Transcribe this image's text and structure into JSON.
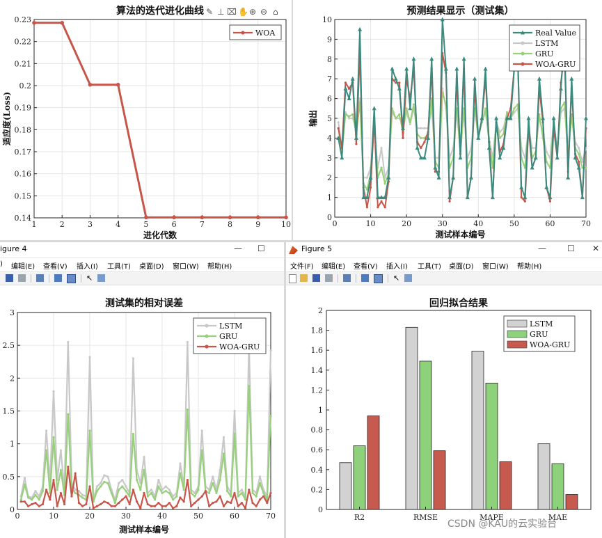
{
  "colors": {
    "woa_gru": "#C8554A",
    "lstm": "#C8C8C8",
    "gru": "#97D07A",
    "real": "#3A8A7F",
    "bar_lstm": "#D2D2D2",
    "bar_gru": "#8DD17A",
    "bar_woa": "#C65A4E"
  },
  "iter": {
    "title": "算法的迭代进化曲线",
    "xlabel": "进化代数",
    "ylabel": "适应度(Loss)",
    "legend": [
      "WOA"
    ],
    "yticks": [
      "0.14",
      "0.15",
      "0.16",
      "0.17",
      "0.18",
      "0.19",
      "0.2",
      "0.21",
      "0.22",
      "0.23"
    ],
    "xticks": [
      "1",
      "2",
      "3",
      "4",
      "5",
      "6",
      "7",
      "8",
      "9",
      "10"
    ]
  },
  "pred": {
    "title": "预测结果显示（测试集）",
    "xlabel": "测试样本编号",
    "ylabel": "输出",
    "legend": [
      "Real Value",
      "LSTM",
      "GRU",
      "WOA-GRU"
    ],
    "yticks": [
      "0",
      "1",
      "2",
      "3",
      "4",
      "5",
      "6",
      "7",
      "8",
      "9",
      "10"
    ],
    "xticks": [
      "0",
      "10",
      "20",
      "30",
      "40",
      "50",
      "60",
      "70"
    ]
  },
  "err": {
    "window_title": "igure 4",
    "menu": [
      "编辑(E)",
      "查看(V)",
      "插入(I)",
      "工具(T)",
      "桌面(D)",
      "窗口(W)",
      "帮助(H)"
    ],
    "title": "测试集的相对误差",
    "xlabel": "测试样本编号",
    "legend": [
      "LSTM",
      "GRU",
      "WOA-GRU"
    ],
    "yticks": [
      "0",
      "0.5",
      "1",
      "1.5",
      "2",
      "2.5",
      "3"
    ],
    "xticks": [
      "0",
      "10",
      "20",
      "30",
      "40",
      "50",
      "60",
      "70"
    ]
  },
  "reg": {
    "window_title": "Figure 5",
    "menu": [
      "文件(F)",
      "编辑(E)",
      "查看(V)",
      "插入(I)",
      "工具(T)",
      "桌面(D)",
      "窗口(W)",
      "帮助(H)"
    ],
    "title": "回归拟合结果",
    "legend": [
      "LSTM",
      "GRU",
      "WOA-GRU"
    ],
    "yticks": [
      "0",
      "0.2",
      "0.4",
      "0.6",
      "0.8",
      "1",
      "1.2",
      "1.4",
      "1.6",
      "1.8",
      "2"
    ],
    "categories": [
      "R2",
      "RMSE",
      "MAPE",
      "MAE"
    ]
  },
  "watermark": "CSDN @KAU的云实验台",
  "chart_data": [
    {
      "type": "line",
      "title": "算法的迭代进化曲线",
      "xlabel": "进化代数",
      "ylabel": "适应度(Loss)",
      "xlim": [
        1,
        10
      ],
      "ylim": [
        0.14,
        0.23
      ],
      "grid": true,
      "legend_position": "top-right",
      "x": [
        1,
        2,
        3,
        4,
        5,
        6,
        7,
        8,
        9,
        10
      ],
      "series": [
        {
          "name": "WOA",
          "values": [
            0.2285,
            0.2285,
            0.2004,
            0.2004,
            0.1402,
            0.1402,
            0.1402,
            0.1402,
            0.1402,
            0.1402
          ]
        }
      ]
    },
    {
      "type": "line",
      "title": "预测结果显示（测试集）",
      "xlabel": "测试样本编号",
      "ylabel": "输出",
      "xlim": [
        0,
        70
      ],
      "ylim": [
        0,
        10
      ],
      "grid": true,
      "legend_position": "top-right",
      "x": [
        1,
        2,
        3,
        4,
        5,
        6,
        7,
        8,
        9,
        10,
        11,
        12,
        13,
        14,
        15,
        16,
        17,
        18,
        19,
        20,
        21,
        22,
        23,
        24,
        25,
        26,
        27,
        28,
        29,
        30,
        31,
        32,
        33,
        34,
        35,
        36,
        37,
        38,
        39,
        40,
        41,
        42,
        43,
        44,
        45,
        46,
        47,
        48,
        49,
        50,
        51,
        52,
        53,
        54,
        55,
        56,
        57,
        58,
        59,
        60,
        61,
        62,
        63,
        64,
        65,
        66,
        67,
        68,
        69,
        70
      ],
      "series": [
        {
          "name": "Real Value",
          "values": [
            4,
            3,
            6.5,
            6,
            7,
            4,
            9.5,
            1,
            1,
            2,
            5.5,
            1,
            1,
            1,
            2,
            7.5,
            7,
            6.5,
            4.5,
            7.5,
            5.5,
            8,
            3.5,
            3,
            3,
            4,
            8,
            2.5,
            2,
            10,
            7.5,
            1,
            2,
            7.5,
            3,
            8,
            1,
            2,
            7,
            4,
            5,
            7.5,
            3.5,
            1,
            5,
            3,
            3.5,
            5,
            5,
            7.5,
            8,
            1.5,
            1,
            5,
            2.5,
            3,
            7,
            5,
            1.5,
            1,
            5,
            3,
            6.5,
            9,
            2,
            7,
            3,
            2.5,
            1,
            5
          ]
        },
        {
          "name": "LSTM",
          "values": [
            4.8,
            3.5,
            5.3,
            5,
            5,
            4.5,
            6,
            2,
            2,
            2.5,
            4.5,
            2.5,
            3.5,
            2,
            2.5,
            5.3,
            5,
            5,
            4.7,
            5.3,
            4.7,
            5.5,
            4.5,
            4.5,
            4.5,
            4.5,
            5.5,
            3,
            3,
            6.5,
            5.5,
            3,
            3.5,
            5.3,
            3.5,
            5.3,
            3,
            3.5,
            5.5,
            4.3,
            4.8,
            5.3,
            4,
            3,
            4.8,
            4.3,
            4.5,
            5.3,
            5,
            5.3,
            5.5,
            3.5,
            3,
            4.5,
            3.5,
            3.5,
            5,
            4.3,
            3.3,
            3,
            4.8,
            3.5,
            5.3,
            5.5,
            3.5,
            5,
            3.8,
            3.5,
            2.8,
            3.5
          ]
        },
        {
          "name": "GRU",
          "values": [
            4.5,
            3.3,
            5.2,
            5.1,
            5.2,
            4.2,
            5.8,
            1.7,
            1.4,
            2.2,
            4.8,
            2,
            2.5,
            1.7,
            2.2,
            5.5,
            5,
            5.2,
            4.3,
            5.5,
            4.8,
            5.7,
            4.2,
            4,
            4,
            4.2,
            6,
            2.8,
            2.5,
            6.3,
            5.7,
            2.5,
            3,
            5.5,
            3.2,
            5.5,
            2.5,
            3,
            5.5,
            4,
            4.8,
            5.5,
            3.8,
            2.5,
            4.8,
            4,
            4.2,
            5.3,
            5,
            5.5,
            5.7,
            3,
            2.5,
            4.5,
            3,
            3.3,
            5.2,
            4,
            2.8,
            2.5,
            4.8,
            3.3,
            5.5,
            5.8,
            3,
            5.2,
            3.5,
            3.2,
            2.5,
            2.5
          ]
        },
        {
          "name": "WOA-GRU",
          "values": [
            4.5,
            3.5,
            6.8,
            6.5,
            6.8,
            3.7,
            8.3,
            1.5,
            0.5,
            1.5,
            5,
            0.5,
            0.8,
            0.5,
            1.8,
            7,
            6.8,
            6.8,
            4,
            7,
            6,
            7.5,
            3.8,
            3.5,
            3.8,
            4.3,
            7.5,
            2.3,
            2.3,
            8.3,
            7.3,
            0.8,
            2,
            7,
            3.2,
            7.5,
            1,
            2,
            6.5,
            4,
            5,
            7,
            3.8,
            1,
            4.8,
            3.3,
            3.7,
            5,
            5.5,
            7.5,
            8,
            1,
            0.8,
            4.5,
            2.5,
            3,
            6.5,
            4.8,
            1.5,
            0.8,
            4.5,
            3,
            6.8,
            8.3,
            2.3,
            6.5,
            3.2,
            2.8,
            1,
            4.5
          ]
        }
      ]
    },
    {
      "type": "line",
      "title": "测试集的相对误差",
      "xlabel": "测试样本编号",
      "xlim": [
        0,
        70
      ],
      "ylim": [
        0,
        3
      ],
      "grid": true,
      "legend_position": "top-right",
      "x": [
        1,
        2,
        3,
        4,
        5,
        6,
        7,
        8,
        9,
        10,
        11,
        12,
        13,
        14,
        15,
        16,
        17,
        18,
        19,
        20,
        21,
        22,
        23,
        24,
        25,
        26,
        27,
        28,
        29,
        30,
        31,
        32,
        33,
        34,
        35,
        36,
        37,
        38,
        39,
        40,
        41,
        42,
        43,
        44,
        45,
        46,
        47,
        48,
        49,
        50,
        51,
        52,
        53,
        54,
        55,
        56,
        57,
        58,
        59,
        60,
        61,
        62,
        63,
        64,
        65,
        66,
        67,
        68,
        69,
        70
      ],
      "series": [
        {
          "name": "LSTM",
          "values": [
            0.2,
            0.48,
            0.2,
            0.18,
            0.28,
            0.2,
            0.35,
            1.2,
            0.4,
            1.8,
            0.45,
            0.9,
            0.3,
            2.55,
            0.4,
            0.3,
            0.28,
            0.22,
            0.2,
            2.32,
            0.15,
            0.35,
            0.4,
            0.52,
            0.5,
            0.3,
            0.15,
            0.4,
            0.45,
            0.35,
            0.25,
            2.3,
            0.6,
            0.4,
            0.8,
            0.25,
            0.3,
            0.2,
            0.45,
            0.3,
            0.35,
            0.3,
            0.2,
            0.25,
            0.7,
            0.35,
            2.55,
            0.3,
            0.25,
            0.35,
            1.2,
            0.35,
            0.3,
            0.5,
            0.3,
            0.6,
            1.1,
            0.35,
            0.25,
            1.5,
            0.25,
            0.3,
            0.2,
            2.5,
            0.3,
            0.25,
            0.5,
            0.3,
            0.2,
            2.42
          ]
        },
        {
          "name": "GRU",
          "values": [
            0.15,
            0.38,
            0.18,
            0.15,
            0.22,
            0.15,
            0.28,
            0.9,
            0.25,
            1.1,
            0.3,
            0.6,
            0.22,
            1.45,
            0.32,
            0.25,
            0.22,
            0.18,
            0.15,
            1.2,
            0.12,
            0.28,
            0.35,
            0.42,
            0.4,
            0.25,
            0.1,
            0.3,
            0.35,
            0.28,
            0.2,
            1.15,
            0.45,
            0.3,
            0.6,
            0.2,
            0.25,
            0.15,
            0.35,
            0.25,
            0.28,
            0.25,
            0.15,
            0.2,
            0.55,
            0.3,
            1.52,
            0.25,
            0.2,
            0.3,
            0.9,
            0.28,
            0.25,
            0.4,
            0.25,
            0.45,
            0.85,
            0.28,
            0.2,
            1.15,
            0.2,
            0.25,
            0.15,
            1.88,
            0.25,
            0.2,
            0.4,
            0.25,
            0.15,
            1.42
          ]
        },
        {
          "name": "WOA-GRU",
          "values": [
            0.12,
            0.12,
            0.05,
            0.08,
            0.1,
            0.05,
            0.08,
            0.3,
            0.15,
            0.45,
            0.05,
            0.25,
            0.08,
            0.65,
            0.2,
            0.55,
            0.1,
            0.05,
            0.08,
            0.35,
            0.02,
            0.05,
            0.08,
            0.12,
            0.1,
            0.05,
            0.05,
            0.1,
            0.15,
            0.2,
            0.08,
            0.3,
            0.12,
            0.02,
            0.25,
            0.08,
            0.05,
            0.05,
            0.1,
            0.05,
            0.05,
            0.1,
            0.02,
            0.05,
            0.18,
            0.12,
            0.45,
            0.05,
            0.1,
            0.15,
            0.2,
            0.28,
            0.05,
            0.1,
            0.12,
            0.2,
            0.05,
            0.12,
            0.1,
            0.25,
            0.05,
            0.1,
            0.02,
            0.3,
            0.1,
            0.05,
            0.15,
            0.2,
            0.1,
            0.25
          ]
        }
      ]
    },
    {
      "type": "bar",
      "title": "回归拟合结果",
      "categories": [
        "R2",
        "RMSE",
        "MAPE",
        "MAE"
      ],
      "ylim": [
        0,
        2
      ],
      "grid": false,
      "legend_position": "top-right",
      "series": [
        {
          "name": "LSTM",
          "values": [
            0.47,
            1.83,
            1.59,
            0.66
          ]
        },
        {
          "name": "GRU",
          "values": [
            0.64,
            1.49,
            1.27,
            0.46
          ]
        },
        {
          "name": "WOA-GRU",
          "values": [
            0.94,
            0.59,
            0.48,
            0.15
          ]
        }
      ]
    }
  ]
}
